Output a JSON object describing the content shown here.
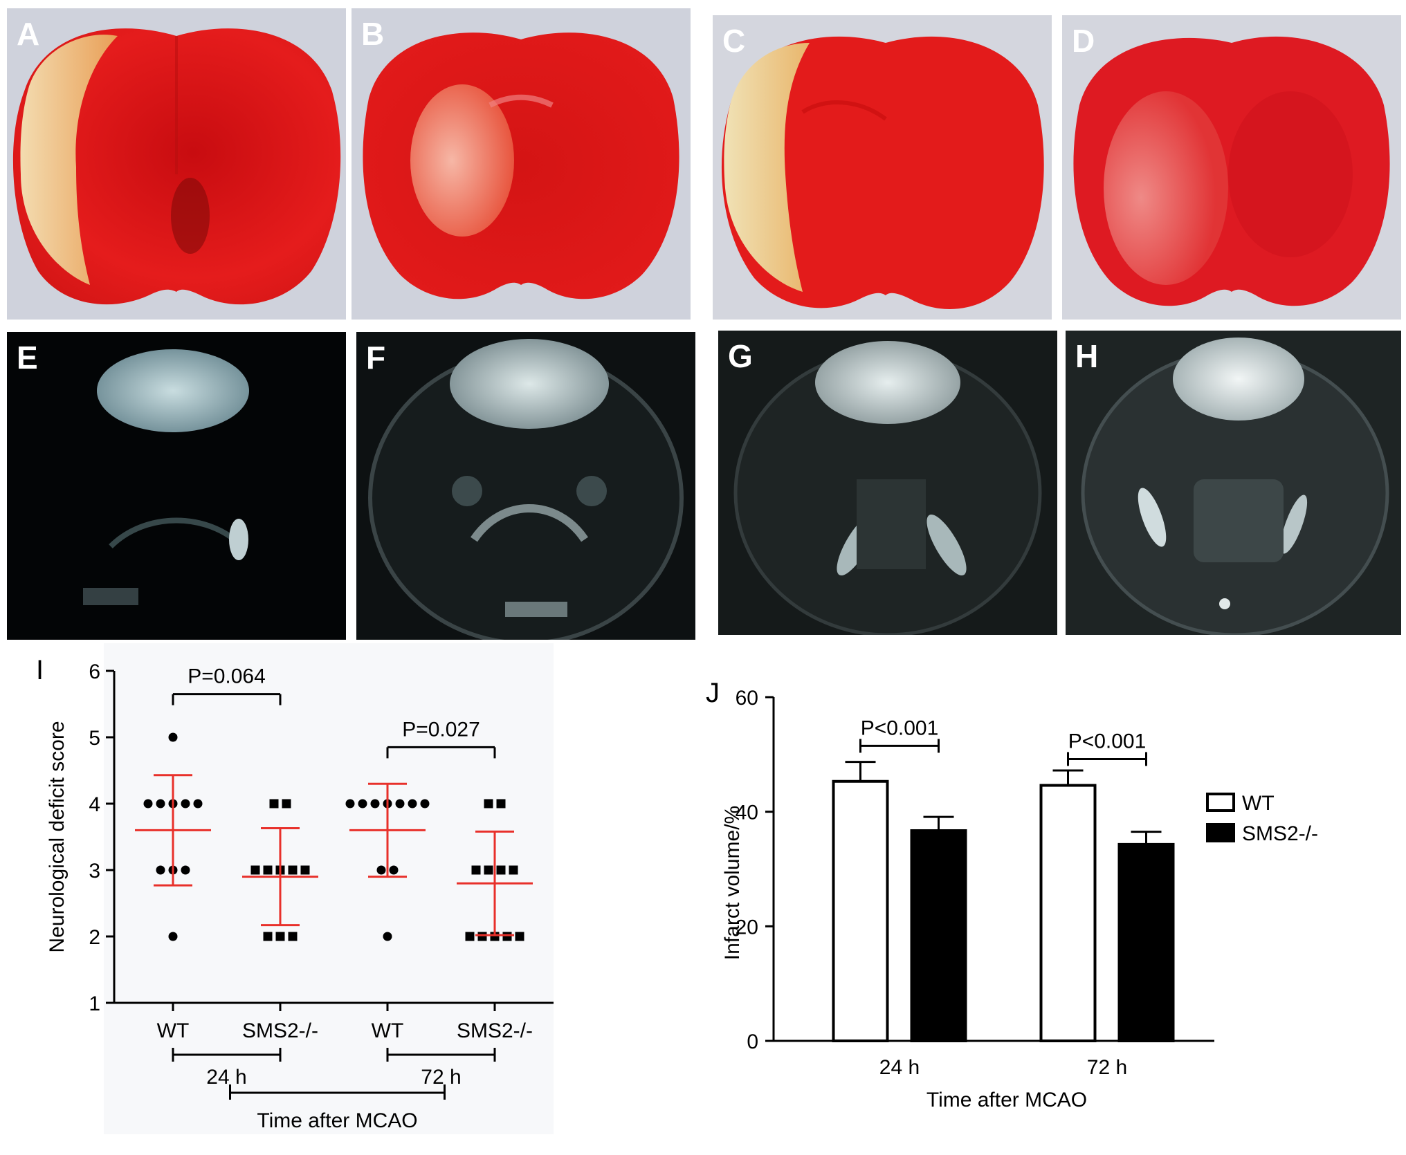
{
  "panels": [
    {
      "label": "A",
      "kind": "ttc"
    },
    {
      "label": "B",
      "kind": "ttc"
    },
    {
      "label": "C",
      "kind": "ttc"
    },
    {
      "label": "D",
      "kind": "ttc"
    },
    {
      "label": "E",
      "kind": "mri"
    },
    {
      "label": "F",
      "kind": "mri"
    },
    {
      "label": "G",
      "kind": "mri"
    },
    {
      "label": "H",
      "kind": "mri"
    }
  ],
  "colors": {
    "ttc_red": "#e21a1a",
    "ttc_pale": "#f2d9a0",
    "mri_bg": "#0b0f0f",
    "scatter_red": "#e8302a",
    "bar_black": "#000000"
  },
  "chart_data": [
    {
      "panel_label": "I",
      "type": "scatter",
      "ylabel": "Neurological deficit score",
      "xlabel": "Time after MCAO",
      "ylim": [
        1,
        6
      ],
      "yticks": [
        1,
        2,
        3,
        4,
        5,
        6
      ],
      "categories": [
        "WT",
        "SMS2-/-",
        "WT",
        "SMS2-/-"
      ],
      "time_groups": [
        "24 h",
        "72 h"
      ],
      "groups": [
        {
          "category": "WT",
          "time": "24 h",
          "points": [
            5,
            4,
            4,
            4,
            4,
            4,
            3,
            3,
            3,
            2
          ],
          "mean": 3.6,
          "sd_low": 2.77,
          "sd_high": 4.43
        },
        {
          "category": "SMS2-/-",
          "time": "24 h",
          "points": [
            4,
            4,
            3,
            3,
            3,
            3,
            3,
            2,
            2,
            2
          ],
          "mean": 2.9,
          "sd_low": 2.17,
          "sd_high": 3.63
        },
        {
          "category": "WT",
          "time": "72 h",
          "points": [
            4,
            4,
            4,
            4,
            4,
            4,
            4,
            3,
            3,
            2
          ],
          "mean": 3.6,
          "sd_low": 2.9,
          "sd_high": 4.3
        },
        {
          "category": "SMS2-/-",
          "time": "72 h",
          "points": [
            4,
            4,
            3,
            3,
            3,
            3,
            2,
            2,
            2,
            2,
            2
          ],
          "mean": 2.8,
          "sd_low": 2.02,
          "sd_high": 3.58
        }
      ],
      "annotations": [
        {
          "text": "P=0.064",
          "groups": [
            0,
            1
          ]
        },
        {
          "text": "P=0.027",
          "groups": [
            2,
            3
          ]
        }
      ]
    },
    {
      "panel_label": "J",
      "type": "bar",
      "ylabel": "Infarct volume/%",
      "xlabel": "Time after MCAO",
      "ylim": [
        0,
        60
      ],
      "yticks": [
        0,
        20,
        40,
        60
      ],
      "categories": [
        "24 h",
        "72 h"
      ],
      "series": [
        {
          "name": "WT",
          "values": [
            45.3,
            44.6
          ],
          "errors": [
            3.4,
            2.6
          ],
          "fill": "#ffffff"
        },
        {
          "name": "SMS2-/-",
          "values": [
            36.7,
            34.3
          ],
          "errors": [
            2.4,
            2.2
          ],
          "fill": "#000000"
        }
      ],
      "annotations": [
        {
          "text": "P<0.001",
          "category": 0
        },
        {
          "text": "P<0.001",
          "category": 1
        }
      ],
      "legend_placement": "right"
    }
  ]
}
